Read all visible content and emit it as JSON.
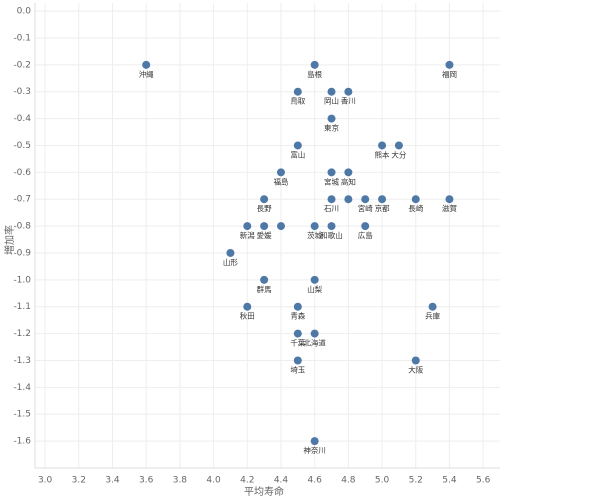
{
  "chart_data": {
    "type": "scatter",
    "x_label": "平均寿命",
    "y_label": "増加率",
    "color": "#4e79a7",
    "grid": true,
    "xlim": [
      2.94,
      5.7
    ],
    "ylim": [
      -1.7,
      0.03
    ],
    "xticks": [
      {
        "value": 3,
        "label": "3.0"
      },
      3.2,
      3.4,
      3.6,
      3.8,
      {
        "value": 4,
        "label": "4.0"
      },
      4.2,
      4.4,
      4.6,
      4.8,
      {
        "value": 5,
        "label": "5.0"
      },
      5.2,
      5.4,
      5.6
    ],
    "yticks": [
      {
        "value": 0,
        "label": "0.0"
      },
      -0.1,
      -0.2,
      -0.3,
      -0.4,
      -0.5,
      -0.6,
      -0.7,
      -0.8,
      -0.9,
      {
        "value": -1,
        "label": "-1.0"
      },
      -1.1,
      -1.2,
      -1.3,
      -1.4,
      -1.5,
      -1.6
    ],
    "point_labels": [
      "沖縄",
      "島根",
      "福岡",
      "鳥取",
      "岡山",
      "香川",
      "東京",
      "富山",
      "熊本",
      "大分",
      "福島",
      "宮城",
      "高知",
      "長野",
      "石川",
      null,
      "宮崎",
      "京都",
      "長崎",
      "滋賀",
      "新潟",
      "愛媛",
      null,
      "茨城",
      "和歌山",
      "広島",
      "山形",
      "群馬",
      "山梨",
      "秋田",
      "青森",
      "兵庫",
      "千葉",
      "北海道",
      "埼玉",
      "大阪",
      "神奈川"
    ],
    "x": [
      3.6,
      4.6,
      5.4,
      4.5,
      4.7,
      4.8,
      4.7,
      4.5,
      5.0,
      5.1,
      4.4,
      4.7,
      4.8,
      4.3,
      4.7,
      4.8,
      4.9,
      5.0,
      5.2,
      5.4,
      4.2,
      4.3,
      4.4,
      4.6,
      4.7,
      4.9,
      4.1,
      4.3,
      4.6,
      4.2,
      4.5,
      5.3,
      4.5,
      4.6,
      4.5,
      5.2,
      4.6
    ],
    "values": [
      -0.2,
      -0.2,
      -0.2,
      -0.3,
      -0.3,
      -0.3,
      -0.4,
      -0.5,
      -0.5,
      -0.5,
      -0.6,
      -0.6,
      -0.6,
      -0.7,
      -0.7,
      -0.7,
      -0.7,
      -0.7,
      -0.7,
      -0.7,
      -0.8,
      -0.8,
      -0.8,
      -0.8,
      -0.8,
      -0.8,
      -0.9,
      -1.0,
      -1.0,
      -1.1,
      -1.1,
      -1.1,
      -1.2,
      -1.2,
      -1.3,
      -1.3,
      -1.6
    ]
  }
}
